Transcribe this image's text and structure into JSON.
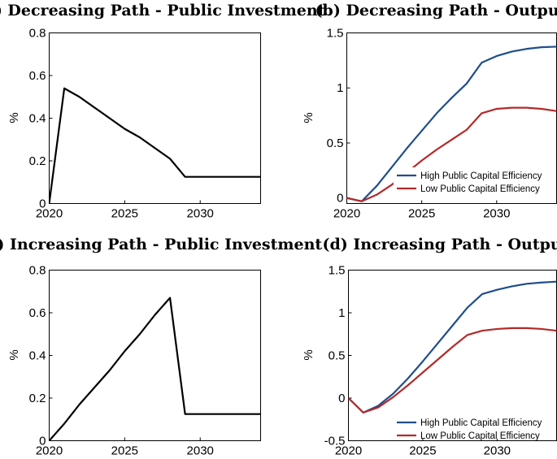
{
  "colors": {
    "black": "#000000",
    "high": "#1f4e8c",
    "low": "#b22a2a"
  },
  "chart_data": [
    {
      "type": "line",
      "title": "(a) Decreasing Path - Public Investment",
      "ylabel": "%",
      "xlim": [
        2020,
        2034
      ],
      "ylim": [
        0,
        0.8
      ],
      "xticks": [
        2020,
        2025,
        2030
      ],
      "yticks": [
        0,
        0.2,
        0.4,
        0.6,
        0.8
      ],
      "xtick_labels": [
        "2020",
        "2025",
        "2030"
      ],
      "ytick_labels": [
        "0",
        "0.2",
        "0.4",
        "0.6",
        "0.8"
      ],
      "series": [
        {
          "name": "Public Investment",
          "color": "#000000",
          "x": [
            2020,
            2021,
            2022,
            2023,
            2024,
            2025,
            2026,
            2027,
            2028,
            2029,
            2030,
            2031,
            2032,
            2033,
            2034
          ],
          "values": [
            0,
            0.54,
            0.5,
            0.45,
            0.4,
            0.35,
            0.31,
            0.26,
            0.21,
            0.125,
            0.125,
            0.125,
            0.125,
            0.125,
            0.125
          ]
        }
      ]
    },
    {
      "type": "line",
      "title": "(b) Decreasing Path - Output",
      "ylabel": "%",
      "xlim": [
        2020,
        2034
      ],
      "ylim": [
        -0.05,
        1.5
      ],
      "xticks": [
        2020,
        2025,
        2030
      ],
      "yticks": [
        0,
        0.5,
        1,
        1.5
      ],
      "xtick_labels": [
        "2020",
        "2025",
        "2030"
      ],
      "ytick_labels": [
        "0",
        "0.5",
        "1",
        "1.5"
      ],
      "legend": "lower-right",
      "series": [
        {
          "name": "High Public Capital Efficiency",
          "color": "#1f4e8c",
          "x": [
            2020,
            2021,
            2022,
            2023,
            2024,
            2025,
            2026,
            2027,
            2028,
            2029,
            2030,
            2031,
            2032,
            2033,
            2034
          ],
          "values": [
            0,
            -0.03,
            0.11,
            0.28,
            0.45,
            0.61,
            0.77,
            0.91,
            1.04,
            1.23,
            1.29,
            1.33,
            1.355,
            1.37,
            1.375
          ]
        },
        {
          "name": "Low Public Capital Efficiency",
          "color": "#b22a2a",
          "x": [
            2020,
            2021,
            2022,
            2023,
            2024,
            2025,
            2026,
            2027,
            2028,
            2029,
            2030,
            2031,
            2032,
            2033,
            2034
          ],
          "values": [
            0,
            -0.03,
            0.03,
            0.12,
            0.23,
            0.34,
            0.44,
            0.53,
            0.62,
            0.77,
            0.81,
            0.82,
            0.82,
            0.81,
            0.79
          ]
        }
      ]
    },
    {
      "type": "line",
      "title": "(c) Increasing Path - Public Investment",
      "ylabel": "%",
      "xlim": [
        2020,
        2034
      ],
      "ylim": [
        0,
        0.8
      ],
      "xticks": [
        2020,
        2025,
        2030
      ],
      "yticks": [
        0,
        0.2,
        0.4,
        0.6,
        0.8
      ],
      "xtick_labels": [
        "2020",
        "2025",
        "2030"
      ],
      "ytick_labels": [
        "0",
        "0.2",
        "0.4",
        "0.6",
        "0.8"
      ],
      "series": [
        {
          "name": "Public Investment",
          "color": "#000000",
          "x": [
            2020,
            2021,
            2022,
            2023,
            2024,
            2025,
            2026,
            2027,
            2028,
            2029,
            2030,
            2031,
            2032,
            2033,
            2034
          ],
          "values": [
            0,
            0.08,
            0.17,
            0.25,
            0.33,
            0.42,
            0.5,
            0.59,
            0.67,
            0.125,
            0.125,
            0.125,
            0.125,
            0.125,
            0.125
          ]
        }
      ]
    },
    {
      "type": "line",
      "title": "(d) Increasing Path - Output",
      "ylabel": "%",
      "xlim": [
        2020,
        2034
      ],
      "ylim": [
        -0.5,
        1.5
      ],
      "xticks": [
        2020,
        2025,
        2030
      ],
      "yticks": [
        -0.5,
        0,
        0.5,
        1,
        1.5
      ],
      "xtick_labels": [
        "2020",
        "2025",
        "2030"
      ],
      "ytick_labels": [
        "-0.5",
        "0",
        "0.5",
        "1",
        "1.5"
      ],
      "legend": "lower-right",
      "series": [
        {
          "name": "High Public Capital Efficiency",
          "color": "#1f4e8c",
          "x": [
            2020,
            2021,
            2022,
            2023,
            2024,
            2025,
            2026,
            2027,
            2028,
            2029,
            2030,
            2031,
            2032,
            2033,
            2034
          ],
          "values": [
            0,
            -0.17,
            -0.09,
            0.05,
            0.23,
            0.43,
            0.64,
            0.85,
            1.06,
            1.22,
            1.27,
            1.31,
            1.34,
            1.355,
            1.365
          ]
        },
        {
          "name": "Low Public Capital Efficiency",
          "color": "#b22a2a",
          "x": [
            2020,
            2021,
            2022,
            2023,
            2024,
            2025,
            2026,
            2027,
            2028,
            2029,
            2030,
            2031,
            2032,
            2033,
            2034
          ],
          "values": [
            0,
            -0.17,
            -0.11,
            0.01,
            0.15,
            0.3,
            0.45,
            0.6,
            0.74,
            0.79,
            0.81,
            0.82,
            0.82,
            0.81,
            0.79
          ]
        }
      ]
    }
  ]
}
